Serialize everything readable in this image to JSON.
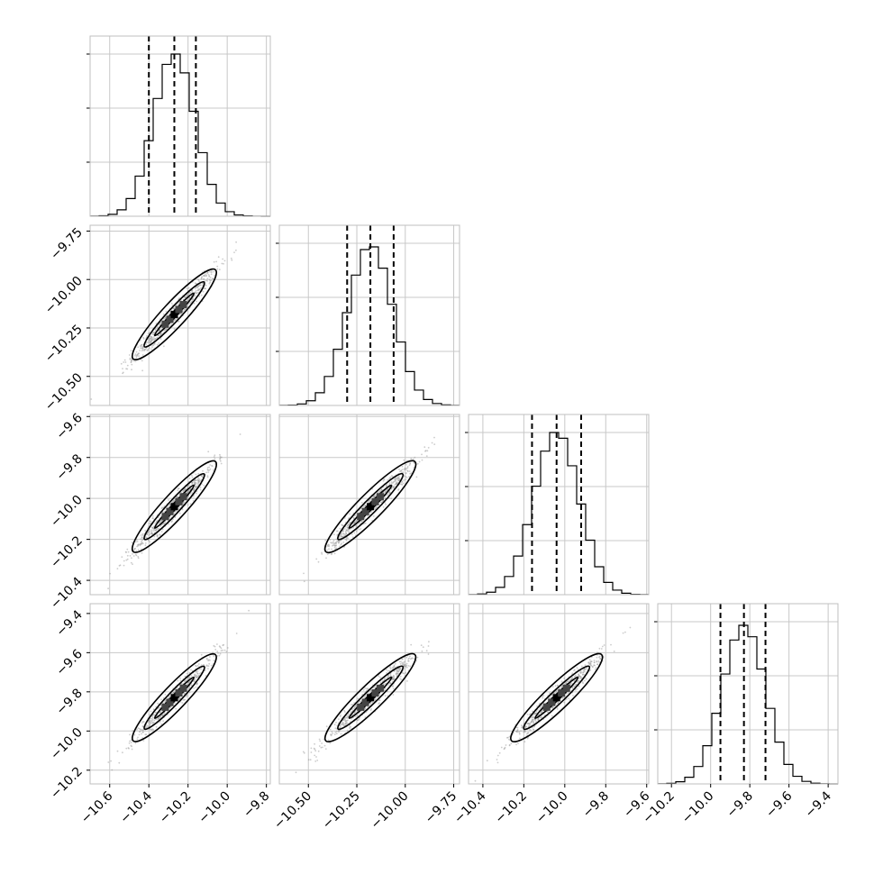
{
  "chart_data": {
    "type": "corner",
    "parameters": [
      {
        "index": 0,
        "label": "",
        "range": [
          -10.7,
          -9.78
        ],
        "ticks": [
          -10.6,
          -10.4,
          -10.2,
          -10.0,
          -9.8
        ],
        "tick_labels": [
          "−10.6",
          "−10.4",
          "−10.2",
          "−10.0",
          "−9.8"
        ]
      },
      {
        "index": 1,
        "label": "",
        "range": [
          -10.65,
          -9.72
        ],
        "ticks": [
          -10.5,
          -10.25,
          -10.0,
          -9.75
        ],
        "tick_labels": [
          "−10.50",
          "−10.25",
          "−10.00",
          "−9.75"
        ]
      },
      {
        "index": 2,
        "label": "",
        "range": [
          -10.47,
          -9.59
        ],
        "ticks": [
          -10.4,
          -10.2,
          -10.0,
          -9.8,
          -9.6
        ],
        "tick_labels": [
          "−10.4",
          "−10.2",
          "−10.0",
          "−9.8",
          "−9.6"
        ]
      },
      {
        "index": 3,
        "label": "",
        "range": [
          -10.27,
          -9.35
        ],
        "ticks": [
          -10.2,
          -10.0,
          -9.8,
          -9.6,
          -9.4
        ],
        "tick_labels": [
          "−10.2",
          "−10.0",
          "−9.8",
          "−9.6",
          "−9.4"
        ]
      }
    ],
    "histograms": [
      {
        "param": 0,
        "quantiles": [
          -10.4,
          -10.27,
          -10.16
        ],
        "mean": -10.27,
        "sd": 0.105,
        "peak_fraction": 0.9
      },
      {
        "param": 1,
        "quantiles": [
          -10.3,
          -10.18,
          -10.06
        ],
        "mean": -10.18,
        "sd": 0.115,
        "peak_fraction": 0.88
      },
      {
        "param": 2,
        "quantiles": [
          -10.16,
          -10.04,
          -9.92
        ],
        "mean": -10.04,
        "sd": 0.11,
        "peak_fraction": 0.9
      },
      {
        "param": 3,
        "quantiles": [
          -9.95,
          -9.83,
          -9.72
        ],
        "mean": -9.83,
        "sd": 0.11,
        "peak_fraction": 0.88
      }
    ],
    "pairs": [
      {
        "x_param": 0,
        "y_param": 1,
        "correlation": 0.97
      },
      {
        "x_param": 0,
        "y_param": 2,
        "correlation": 0.97
      },
      {
        "x_param": 1,
        "y_param": 2,
        "correlation": 0.97
      },
      {
        "x_param": 0,
        "y_param": 3,
        "correlation": 0.97
      },
      {
        "x_param": 1,
        "y_param": 3,
        "correlation": 0.97
      },
      {
        "x_param": 2,
        "y_param": 3,
        "correlation": 0.97
      }
    ],
    "grid": true,
    "title": "",
    "legend": "none"
  }
}
